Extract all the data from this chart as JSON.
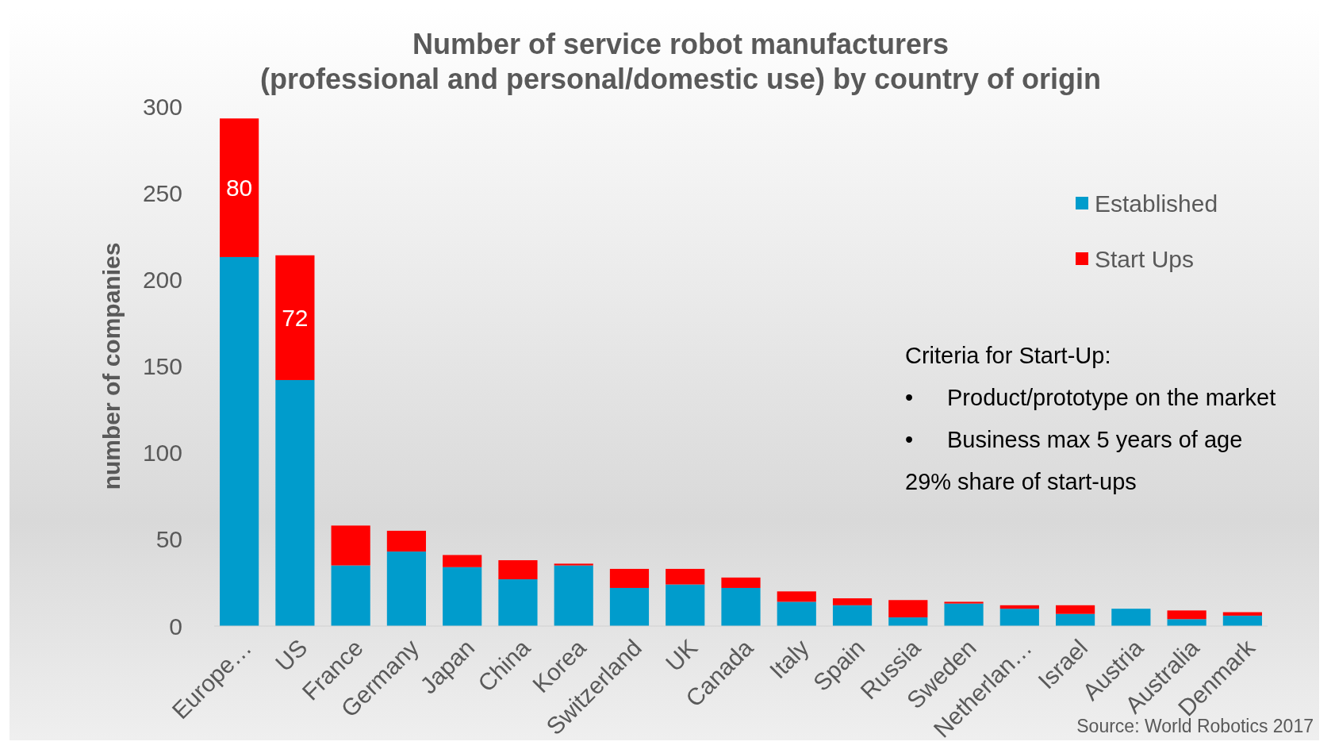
{
  "chart_data": {
    "type": "bar",
    "title": "Number of service robot manufacturers\n(professional and personal/domestic use) by country of origin",
    "ylabel": "number of companies",
    "categories": [
      "Europe…",
      "US",
      "France",
      "Germany",
      "Japan",
      "China",
      "Korea",
      "Switzerland",
      "UK",
      "Canada",
      "Italy",
      "Spain",
      "Russia",
      "Sweden",
      "Netherlan…",
      "Israel",
      "Austria",
      "Australia",
      "Denmark"
    ],
    "series": [
      {
        "name": "Established",
        "color": "#009ccc",
        "values": [
          213,
          142,
          35,
          43,
          34,
          27,
          35,
          22,
          24,
          22,
          14,
          12,
          5,
          13,
          10,
          7,
          10,
          4,
          6
        ]
      },
      {
        "name": "Start Ups",
        "color": "#ff0000",
        "values": [
          80,
          72,
          23,
          12,
          7,
          11,
          1,
          11,
          9,
          6,
          6,
          4,
          10,
          1,
          2,
          5,
          0,
          5,
          2
        ],
        "value_labels": [
          "80",
          "72",
          null,
          null,
          null,
          null,
          null,
          null,
          null,
          null,
          null,
          null,
          null,
          null,
          null,
          null,
          null,
          null,
          null
        ]
      }
    ],
    "stacked": true,
    "ylim": [
      0,
      300
    ],
    "yticks": [
      0,
      50,
      100,
      150,
      200,
      250,
      300
    ],
    "grid": false,
    "legend": "top right",
    "annotations": [
      "Criteria for Start-Up:",
      "•\tProduct/prototype on the market",
      "•\tBusiness max 5 years of age",
      "29% share of start-ups",
      "Source: World Robotics 2017"
    ]
  }
}
